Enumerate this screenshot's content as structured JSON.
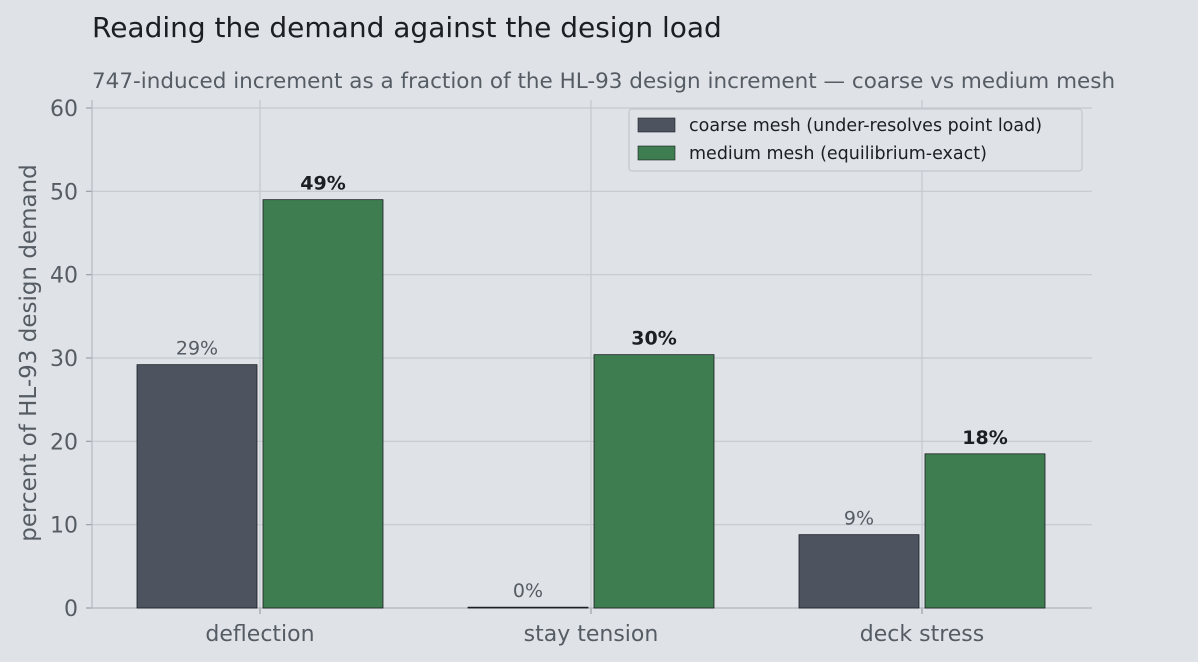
{
  "chart_data": {
    "type": "bar",
    "title": "Reading the demand against the design load",
    "subtitle": "747-induced increment as a fraction of the HL-93 design increment — coarse vs medium mesh",
    "ylabel": "percent of HL-93 design demand",
    "xlabel": "",
    "ylim": [
      0,
      60
    ],
    "yticks": [
      0,
      10,
      20,
      30,
      40,
      50,
      60
    ],
    "grid": true,
    "legend_position": "top-right",
    "categories": [
      "deflection",
      "stay tension",
      "deck stress"
    ],
    "series": [
      {
        "name": "coarse mesh (under-resolves point load)",
        "values": [
          29.2,
          0.1,
          8.8
        ],
        "labels": [
          "29%",
          "0%",
          "9%"
        ],
        "color": "#4d5460"
      },
      {
        "name": "medium mesh (equilibrium-exact)",
        "values": [
          49.0,
          30.4,
          18.5
        ],
        "labels": [
          "49%",
          "30%",
          "18%"
        ],
        "color": "#3e7d4f"
      }
    ]
  }
}
